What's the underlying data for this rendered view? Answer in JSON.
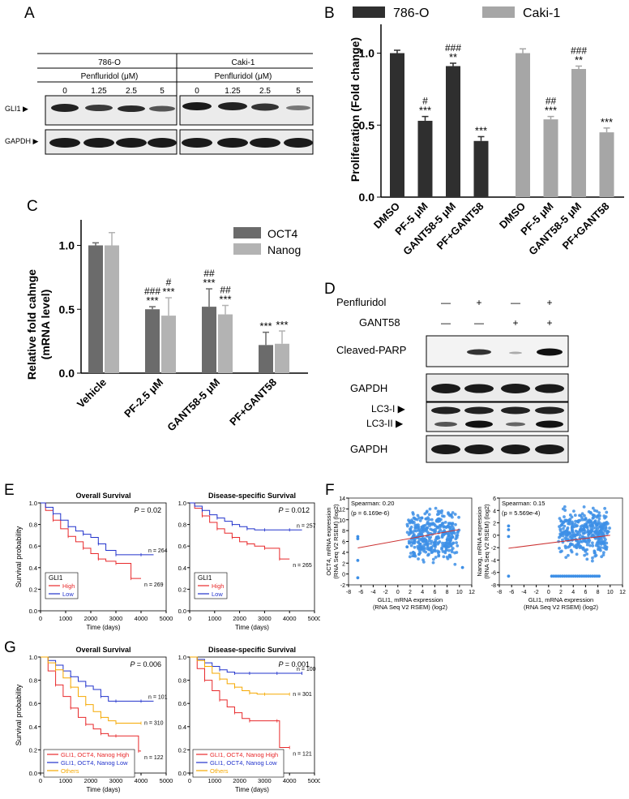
{
  "panel_letters": {
    "A": "A",
    "B": "B",
    "C": "C",
    "D": "D",
    "E": "E",
    "F": "F",
    "G": "G"
  },
  "panelA": {
    "cell_lines": [
      "786-O",
      "Caki-1"
    ],
    "treatment": "Penfluridol (μM)",
    "doses": [
      "0",
      "1.25",
      "2.5",
      "5"
    ],
    "rows": [
      "GLI1 ▶",
      "GAPDH ▶"
    ]
  },
  "colors": {
    "c786": "#2f2f2f",
    "caki": "#a6a6a6",
    "oct4": "#6b6b6b",
    "nanog": "#b3b3b3",
    "red": "#e8292b",
    "blue": "#2233cc",
    "orange": "#f5a800",
    "scatter": "#3d8fe6",
    "fit": "#cc3333"
  },
  "chart_data": [
    {
      "id": "B",
      "type": "bar",
      "ylabel": "Proliferation (Fold change)",
      "ylim": [
        0,
        1.2
      ],
      "yticks": [
        "0.0",
        "0.5",
        "1.0"
      ],
      "legend": [
        "786-O",
        "Caki-1"
      ],
      "groups": [
        {
          "name": "786-O",
          "categories": [
            "DMSO",
            "PF-5 μM",
            "GANT58-5 μM",
            "PF+GANT58"
          ],
          "values": [
            1.0,
            0.53,
            0.91,
            0.39
          ],
          "errors": [
            0.02,
            0.03,
            0.02,
            0.03
          ],
          "annotations": [
            [
              "",
              ""
            ],
            [
              "#",
              "***"
            ],
            [
              "###",
              "**"
            ],
            [
              "",
              "***"
            ]
          ]
        },
        {
          "name": "Caki-1",
          "categories": [
            "DMSO",
            "PF-5 μM",
            "GANT58-5 μM",
            "PF+GANT58"
          ],
          "values": [
            1.0,
            0.54,
            0.89,
            0.45
          ],
          "errors": [
            0.03,
            0.02,
            0.02,
            0.03
          ],
          "annotations": [
            [
              "",
              ""
            ],
            [
              "##",
              "***"
            ],
            [
              "###",
              "**"
            ],
            [
              "",
              "***"
            ]
          ]
        }
      ]
    },
    {
      "id": "C",
      "type": "bar",
      "ylabel": "Relative fold cahnge",
      "ylabel2": "(mRNA level)",
      "ylim": [
        0,
        1.2
      ],
      "yticks": [
        "0.0",
        "0.5",
        "1.0"
      ],
      "categories": [
        "Vehicle",
        "PF-2.5 μM",
        "GANT58-5 μM",
        "PF+GANT58"
      ],
      "series": [
        {
          "name": "OCT4",
          "values": [
            1.0,
            0.5,
            0.52,
            0.22
          ],
          "errors": [
            0.02,
            0.02,
            0.14,
            0.1
          ],
          "annotations": [
            [
              "",
              ""
            ],
            [
              "###",
              "***"
            ],
            [
              "##",
              "***"
            ],
            [
              "",
              "***"
            ]
          ]
        },
        {
          "name": "Nanog",
          "values": [
            1.0,
            0.45,
            0.46,
            0.23
          ],
          "errors": [
            0.1,
            0.14,
            0.07,
            0.1
          ],
          "annotations": [
            [
              "",
              ""
            ],
            [
              "#",
              "***"
            ],
            [
              "##",
              "***"
            ],
            [
              "",
              "***"
            ]
          ]
        }
      ]
    },
    {
      "id": "E1",
      "type": "line",
      "title": "Overall Survival",
      "pvalue": "= 0.02",
      "ptext": "P",
      "xlabel": "Time (days)",
      "ylabel": "Survival probability",
      "xticks": [
        "0",
        "1000",
        "2000",
        "3000",
        "4000",
        "5000"
      ],
      "yticks": [
        "0.0",
        "0.2",
        "0.4",
        "0.6",
        "0.8",
        "1.0"
      ],
      "legend_title": "GLI1",
      "series": [
        {
          "name": "High",
          "color": "red",
          "n": "n = 269",
          "x": [
            0,
            200,
            500,
            800,
            1100,
            1400,
            1700,
            2000,
            2300,
            2600,
            3000,
            3500,
            3600,
            4000
          ],
          "y": [
            1.0,
            0.93,
            0.84,
            0.76,
            0.69,
            0.64,
            0.58,
            0.53,
            0.48,
            0.46,
            0.44,
            0.44,
            0.3,
            0.3
          ]
        },
        {
          "name": "Low",
          "color": "blue",
          "n": "n = 264",
          "x": [
            0,
            200,
            500,
            800,
            1100,
            1400,
            1700,
            2000,
            2300,
            2600,
            3000,
            3500,
            4000,
            4500
          ],
          "y": [
            1.0,
            0.96,
            0.9,
            0.84,
            0.78,
            0.74,
            0.71,
            0.68,
            0.62,
            0.56,
            0.52,
            0.52,
            0.52,
            0.52
          ]
        }
      ]
    },
    {
      "id": "E2",
      "type": "line",
      "title": "Disease-specific Survival",
      "pvalue": "= 0.012",
      "ptext": "P",
      "xlabel": "Time (days)",
      "ylabel": "",
      "xticks": [
        "0",
        "1000",
        "2000",
        "3000",
        "4000",
        "5000"
      ],
      "yticks": [
        "0.0",
        "0.2",
        "0.4",
        "0.6",
        "0.8",
        "1.0"
      ],
      "legend_title": "GLI1",
      "series": [
        {
          "name": "High",
          "color": "red",
          "n": "n = 265",
          "x": [
            0,
            200,
            500,
            800,
            1100,
            1400,
            1700,
            2000,
            2300,
            2600,
            3000,
            3500,
            3600,
            4000
          ],
          "y": [
            1.0,
            0.95,
            0.88,
            0.82,
            0.76,
            0.72,
            0.68,
            0.64,
            0.62,
            0.6,
            0.58,
            0.58,
            0.48,
            0.48
          ]
        },
        {
          "name": "Low",
          "color": "blue",
          "n": "n = 257",
          "x": [
            0,
            200,
            500,
            800,
            1100,
            1400,
            1700,
            2000,
            2300,
            2600,
            3000,
            3500,
            4000,
            4500
          ],
          "y": [
            1.0,
            0.97,
            0.93,
            0.89,
            0.86,
            0.83,
            0.8,
            0.78,
            0.76,
            0.75,
            0.75,
            0.75,
            0.75,
            0.75
          ]
        }
      ]
    },
    {
      "id": "F1",
      "type": "scatter",
      "stat1": "Spearman: 0.20",
      "stat2": "(p = 6.169e-6)",
      "xlabel": "GLI1, mRNA expression",
      "xlabel2": "(RNA Seq V2 RSEM) (log2)",
      "ylabel": "OCT4, mRNA expression",
      "ylabel2": "(RNA Seq V2 RSEM) (log2)",
      "xlim": [
        -8,
        12
      ],
      "ylim": [
        -2,
        14
      ],
      "xticks": [
        "-8",
        "-6",
        "-4",
        "-2",
        "0",
        "2",
        "4",
        "6",
        "8",
        "10",
        "12"
      ],
      "yticks": [
        "-2",
        "0",
        "2",
        "4",
        "6",
        "8",
        "10",
        "12",
        "14"
      ]
    },
    {
      "id": "F2",
      "type": "scatter",
      "stat1": "Spearman: 0.15",
      "stat2": "(p = 5.569e-4)",
      "xlabel": "GLI1, mRNA expression",
      "xlabel2": "(RNA Seq V2 RSEM) (log2)",
      "ylabel": "Nanog, mRNA expression",
      "ylabel2": "(RNA Seq V2 RSEM) (log2)",
      "xlim": [
        -8,
        12
      ],
      "ylim": [
        -8,
        6
      ],
      "xticks": [
        "-8",
        "-6",
        "-4",
        "-2",
        "0",
        "2",
        "4",
        "6",
        "8",
        "10",
        "12"
      ],
      "yticks": [
        "-8",
        "-6",
        "-4",
        "-2",
        "0",
        "2",
        "4",
        "6"
      ]
    },
    {
      "id": "G1",
      "type": "line",
      "title": "Overall Survival",
      "pvalue": "= 0.006",
      "ptext": "P",
      "xlabel": "Time (days)",
      "ylabel": "Survival probability",
      "xticks": [
        "0",
        "1000",
        "2000",
        "3000",
        "4000",
        "5000"
      ],
      "yticks": [
        "0.0",
        "0.2",
        "0.4",
        "0.6",
        "0.8",
        "1.0"
      ],
      "legend_title": "",
      "series": [
        {
          "name": "GLI1, OCT4, Nanog High",
          "color": "red",
          "n": "n = 122",
          "x": [
            0,
            300,
            600,
            900,
            1200,
            1500,
            1800,
            2100,
            2400,
            2700,
            3000,
            3500,
            3900,
            4000
          ],
          "y": [
            1.0,
            0.88,
            0.76,
            0.66,
            0.56,
            0.48,
            0.42,
            0.38,
            0.34,
            0.32,
            0.32,
            0.32,
            0.19,
            0.19
          ]
        },
        {
          "name": "GLI1, OCT4, Nanog Low",
          "color": "blue",
          "n": "n = 101",
          "x": [
            0,
            300,
            600,
            900,
            1200,
            1500,
            1800,
            2100,
            2400,
            2700,
            3000,
            3500,
            4000,
            4500
          ],
          "y": [
            1.0,
            0.97,
            0.93,
            0.88,
            0.83,
            0.79,
            0.75,
            0.72,
            0.66,
            0.62,
            0.62,
            0.62,
            0.62,
            0.62
          ]
        },
        {
          "name": "Others",
          "color": "orange",
          "n": "n = 310",
          "x": [
            0,
            300,
            600,
            900,
            1200,
            1500,
            1800,
            2100,
            2400,
            2700,
            3000,
            3500,
            4000
          ],
          "y": [
            1.0,
            0.95,
            0.89,
            0.82,
            0.74,
            0.66,
            0.59,
            0.53,
            0.48,
            0.45,
            0.43,
            0.43,
            0.43
          ]
        }
      ]
    },
    {
      "id": "G2",
      "type": "line",
      "title": "Disease-specific Survival",
      "pvalue": "= 0.001",
      "ptext": "P",
      "xlabel": "Time (days)",
      "ylabel": "",
      "xticks": [
        "0",
        "1000",
        "2000",
        "3000",
        "4000",
        "5000"
      ],
      "yticks": [
        "0.0",
        "0.2",
        "0.4",
        "0.6",
        "0.8",
        "1.0"
      ],
      "legend_title": "",
      "series": [
        {
          "name": "GLI1, OCT4, Nanog High",
          "color": "red",
          "n": "n = 121",
          "x": [
            0,
            300,
            600,
            900,
            1200,
            1500,
            1800,
            2100,
            2400,
            3000,
            3500,
            3600,
            4000
          ],
          "y": [
            1.0,
            0.9,
            0.8,
            0.71,
            0.63,
            0.57,
            0.52,
            0.47,
            0.45,
            0.45,
            0.45,
            0.22,
            0.22
          ]
        },
        {
          "name": "GLI1, OCT4, Nanog Low",
          "color": "blue",
          "n": "n = 100",
          "x": [
            0,
            300,
            600,
            900,
            1200,
            1500,
            1800,
            2100,
            2400,
            3000,
            3500,
            4000,
            4500
          ],
          "y": [
            1.0,
            0.98,
            0.95,
            0.92,
            0.89,
            0.87,
            0.86,
            0.86,
            0.86,
            0.86,
            0.86,
            0.86,
            0.86
          ]
        },
        {
          "name": "Others",
          "color": "orange",
          "n": "n = 301",
          "x": [
            0,
            300,
            600,
            900,
            1200,
            1500,
            1800,
            2100,
            2400,
            2700,
            3000,
            3500,
            4000
          ],
          "y": [
            1.0,
            0.97,
            0.92,
            0.86,
            0.81,
            0.77,
            0.74,
            0.71,
            0.69,
            0.68,
            0.68,
            0.68,
            0.68
          ]
        }
      ]
    }
  ],
  "panelD": {
    "rows": [
      {
        "label": "Penfluridol",
        "signs": [
          "—",
          "+",
          "—",
          "+"
        ]
      },
      {
        "label": "GANT58",
        "signs": [
          "—",
          "—",
          "+",
          "+"
        ]
      }
    ],
    "blots": [
      "Cleaved-PARP",
      "GAPDH",
      "LC3-I ▶",
      "LC3-II ▶",
      "GAPDH"
    ]
  }
}
